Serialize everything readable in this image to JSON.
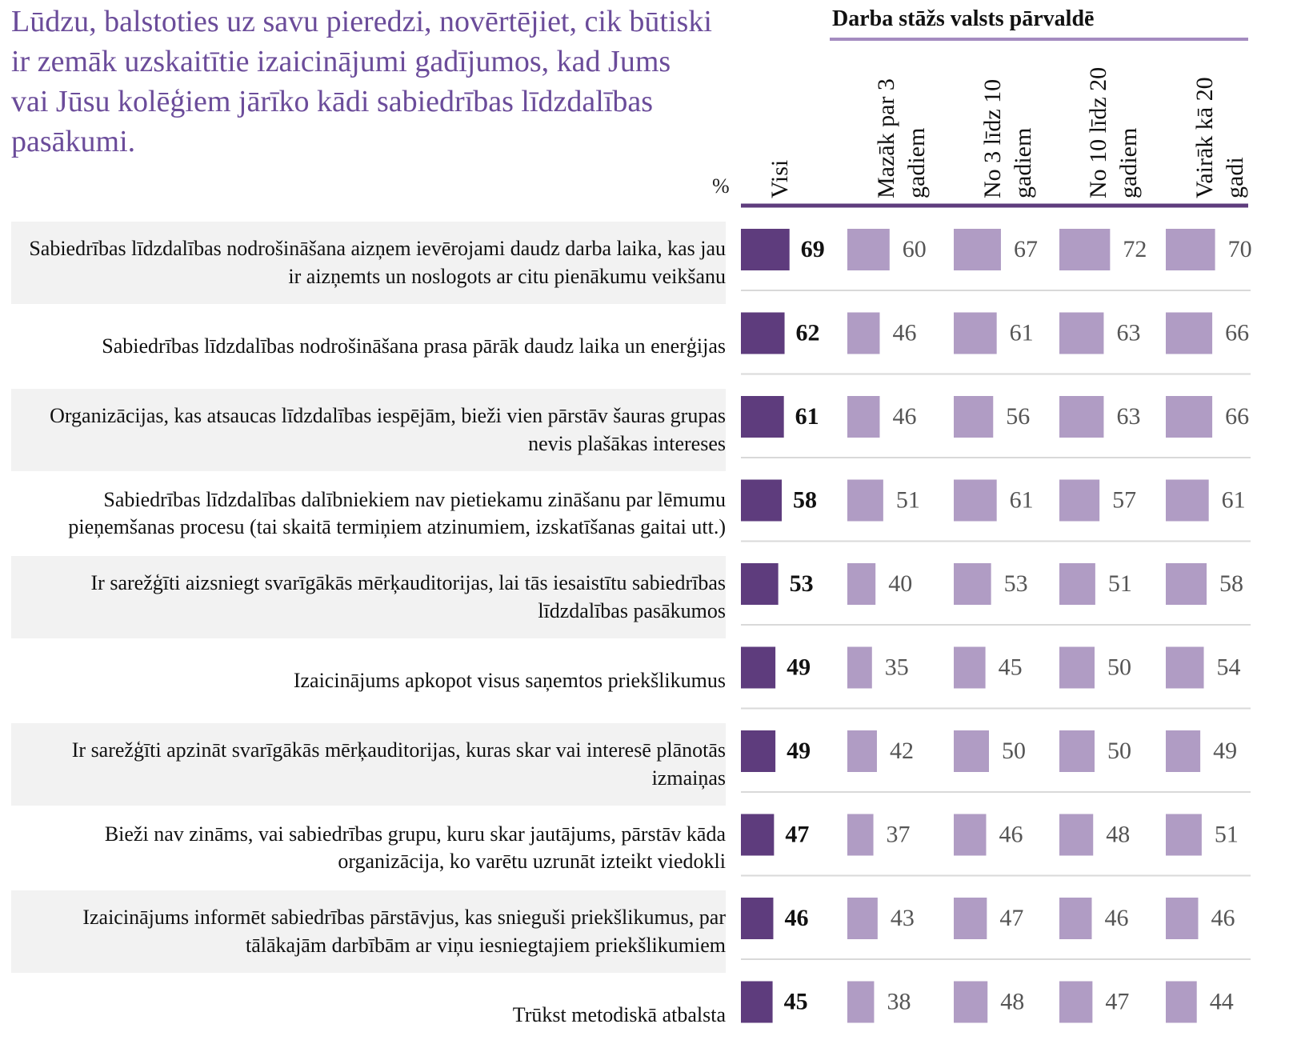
{
  "chart_data": {
    "type": "bar",
    "title": "Lūdzu, balstoties uz savu pieredzi, novērtējiet, cik būtiski ir zemāk uzskaitītie izaicinājumi gadījumos, kad Jums vai Jūsu kolēģiem jārīko kādi sabiedrības līdzdalības pasākumi.",
    "subtitle": "Darba stāžs valsts pārvaldē",
    "unit_label": "%",
    "categories": [
      "Sabiedrības līdzdalības nodrošināšana aizņem ievērojami daudz darba laika, kas jau ir aizņemts un noslogots ar citu pienākumu veikšanu",
      "Sabiedrības līdzdalības nodrošināšana prasa pārāk daudz laika un enerģijas",
      "Organizācijas, kas atsaucas līdzdalības iespējām, bieži vien pārstāv šauras grupas nevis plašākas intereses",
      "Sabiedrības līdzdalības dalībniekiem nav pietiekamu zināšanu par lēmumu pieņemšanas procesu (tai skaitā termiņiem atzinumiem, izskatīšanas gaitai utt.)",
      "Ir sarežģīti aizsniegt svarīgākās mērķauditorijas, lai tās iesaistītu sabiedrības līdzdalības pasākumos",
      "Izaicinājums apkopot visus saņemtos priekšlikumus",
      "Ir sarežģīti apzināt svarīgākās mērķauditorijas, kuras skar vai interesē plānotās izmaiņas",
      "Bieži nav zināms, vai sabiedrības grupu, kuru skar jautājums, pārstāv kāda organizācija, ko varētu uzrunāt izteikt viedokli",
      "Izaicinājums informēt sabiedrības pārstāvjus, kas snieguši priekšlikumus, par tālākajām darbībām ar viņu iesniegtajiem priekšlikumiem",
      "Trūkst metodiskā atbalsta"
    ],
    "series": [
      {
        "name": "Visi",
        "color": "#5e3c7d",
        "values": [
          69,
          62,
          61,
          58,
          53,
          49,
          49,
          47,
          46,
          45
        ]
      },
      {
        "name": "Mazāk par 3 gadiem",
        "color": "#b09cc4",
        "values": [
          60,
          46,
          46,
          51,
          40,
          35,
          42,
          37,
          43,
          38
        ]
      },
      {
        "name": "No 3 līdz 10 gadiem",
        "color": "#b09cc4",
        "values": [
          67,
          61,
          56,
          61,
          53,
          45,
          50,
          46,
          47,
          48
        ]
      },
      {
        "name": "No 10 līdz 20 gadiem",
        "color": "#b09cc4",
        "values": [
          72,
          63,
          63,
          57,
          51,
          50,
          50,
          48,
          46,
          47
        ]
      },
      {
        "name": "Vairāk kā 20 gadi",
        "color": "#b09cc4",
        "values": [
          70,
          66,
          66,
          61,
          58,
          54,
          49,
          51,
          46,
          44
        ]
      }
    ]
  }
}
